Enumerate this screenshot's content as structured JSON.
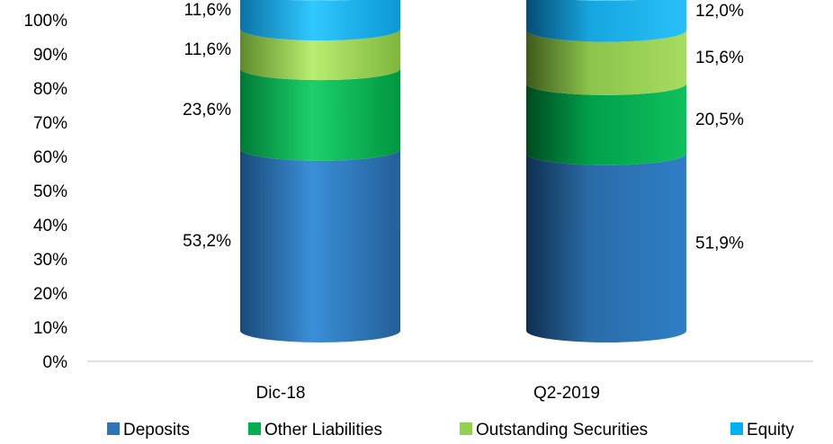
{
  "chart_data": {
    "type": "bar",
    "stacked": true,
    "style": "3d-cylinder",
    "categories": [
      "Dic-18",
      "Q2-2019"
    ],
    "series": [
      {
        "name": "Deposits",
        "values": [
          53.2,
          51.9
        ],
        "labels": [
          "53,2%",
          "51,9%"
        ],
        "color": "#2E75B6"
      },
      {
        "name": "Other Liabilities",
        "values": [
          23.6,
          20.5
        ],
        "labels": [
          "23,6%",
          "20,5%"
        ],
        "color": "#00B050"
      },
      {
        "name": "Outstanding Securities",
        "values": [
          11.6,
          15.6
        ],
        "labels": [
          "11,6%",
          "15,6%"
        ],
        "color": "#92D050"
      },
      {
        "name": "Equity",
        "values": [
          11.6,
          12.0
        ],
        "labels": [
          "11,6%",
          "12,0%"
        ],
        "color": "#00B0F0"
      }
    ],
    "y_ticks": [
      "0%",
      "10%",
      "20%",
      "30%",
      "40%",
      "50%",
      "60%",
      "70%",
      "80%",
      "90%",
      "100%"
    ],
    "ylim": [
      0,
      100
    ],
    "legend_position": "bottom",
    "grid": false
  }
}
